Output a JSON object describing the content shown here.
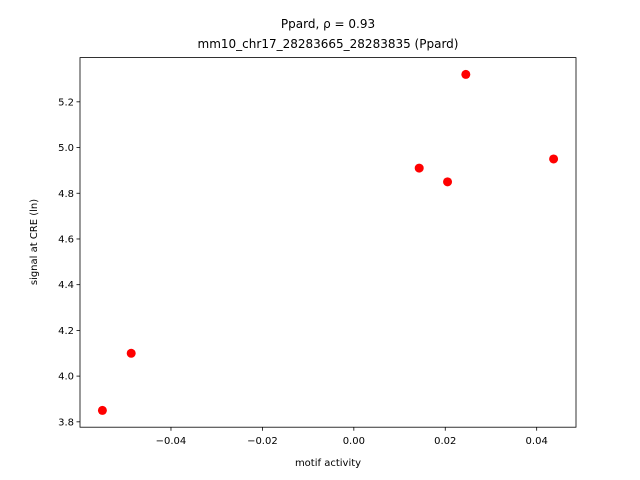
{
  "chart_data": {
    "type": "scatter",
    "title": "Ppard, ρ = 0.93",
    "subtitle": "mm10_chr17_28283665_28283835 (Ppard)",
    "x_label": "motif activity",
    "y_label": "signal at CRE (ln)",
    "x": [
      -0.055,
      -0.0487,
      0.0143,
      0.0205,
      0.0245,
      0.0437
    ],
    "series": [
      {
        "color": "#ff0000",
        "values": [
          3.85,
          4.1,
          4.91,
          4.85,
          5.32,
          4.95
        ]
      }
    ],
    "xlim": [
      -0.0599,
      0.0486
    ],
    "ylim": [
      3.7765,
      5.3935
    ],
    "xticks": [
      {
        "value": -0.04,
        "label": "−0.04"
      },
      {
        "value": -0.02,
        "label": "−0.02"
      },
      {
        "value": 0,
        "label": "0.00"
      },
      0.02,
      0.04
    ],
    "yticks": [
      3.8,
      {
        "value": 4,
        "label": "4.0"
      },
      4.2,
      4.4,
      4.6,
      4.8,
      {
        "value": 5,
        "label": "5.0"
      },
      5.2
    ],
    "grid": false
  }
}
